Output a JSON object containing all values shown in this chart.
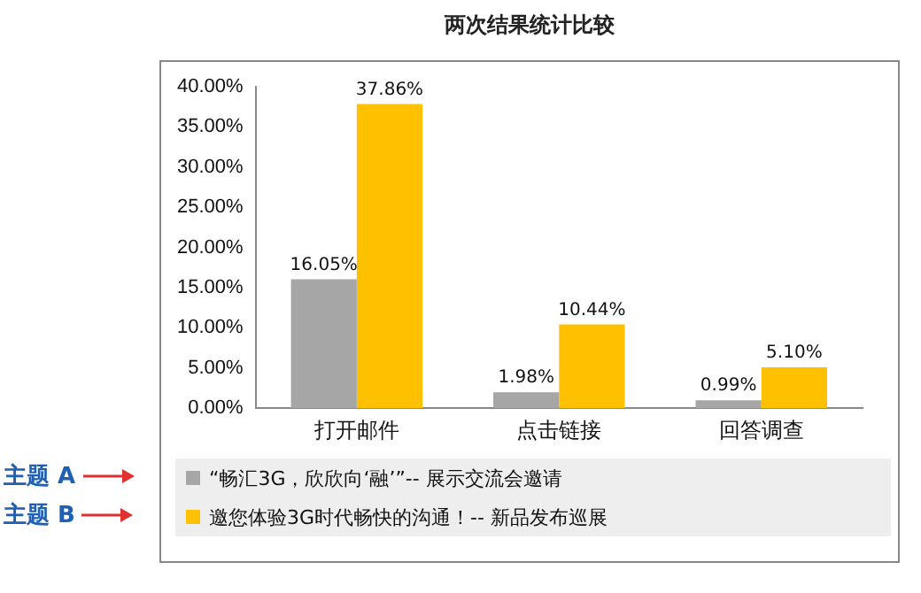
{
  "chart_data": {
    "type": "bar",
    "title": "两次结果统计比较",
    "categories": [
      "打开邮件",
      "点击链接",
      "回答调查"
    ],
    "series": [
      {
        "name": "“畅汇3G，欣欣向‘融’”-- 展示交流会邀请",
        "color": "#a6a6a6",
        "values": [
          16.05,
          1.98,
          0.99
        ],
        "value_labels": [
          "16.05%",
          "1.98%",
          "0.99%"
        ]
      },
      {
        "name": "邀您体验3G时代畅快的沟通！-- 新品发布巡展",
        "color": "#ffc000",
        "values": [
          37.86,
          10.44,
          5.1
        ],
        "value_labels": [
          "37.86%",
          "10.44%",
          "5.10%"
        ]
      }
    ],
    "ylim": [
      0,
      40
    ],
    "yticks": [
      {
        "value": 0,
        "label": "0.00%"
      },
      {
        "value": 5,
        "label": "5.00%"
      },
      {
        "value": 10,
        "label": "10.00%"
      },
      {
        "value": 15,
        "label": "15.00%"
      },
      {
        "value": 20,
        "label": "20.00%"
      },
      {
        "value": 25,
        "label": "25.00%"
      },
      {
        "value": 30,
        "label": "30.00%"
      },
      {
        "value": 35,
        "label": "35.00%"
      },
      {
        "value": 40,
        "label": "40.00%"
      }
    ],
    "grid": false,
    "legend": "bottom",
    "annotations": [
      "主题 A",
      "主题 B"
    ]
  }
}
